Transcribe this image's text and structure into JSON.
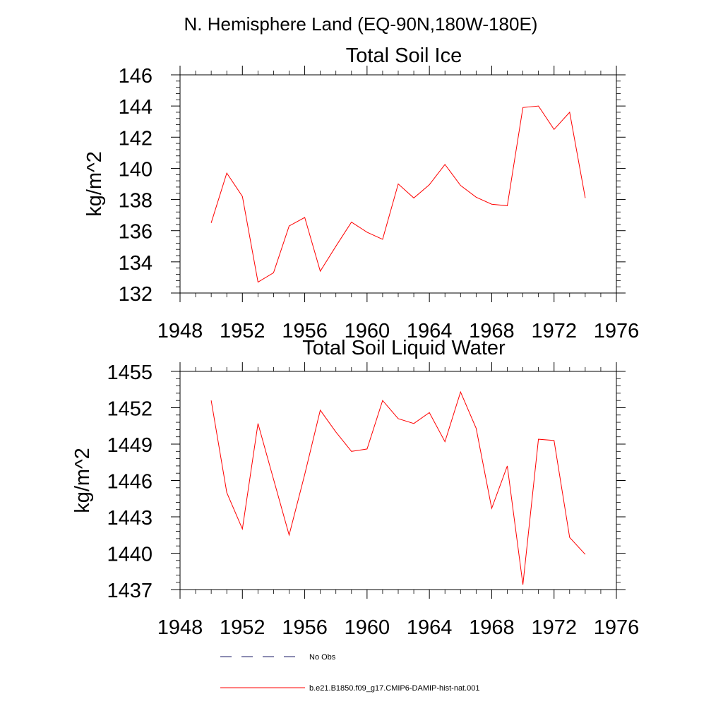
{
  "figure": {
    "suptitle": "N. Hemisphere Land (EQ-90N,180W-180E)"
  },
  "chart_data": [
    {
      "type": "line",
      "title": "Total Soil Ice",
      "xlabel": "",
      "ylabel": "kg/m^2",
      "xlim": [
        1948,
        1976
      ],
      "ylim": [
        132,
        146
      ],
      "xticks": [
        1948,
        1952,
        1956,
        1960,
        1964,
        1968,
        1972,
        1976
      ],
      "yticks": [
        132,
        134,
        136,
        138,
        140,
        142,
        144,
        146
      ],
      "x": [
        1950,
        1951,
        1952,
        1953,
        1954,
        1955,
        1956,
        1957,
        1958,
        1959,
        1960,
        1961,
        1962,
        1963,
        1964,
        1965,
        1966,
        1967,
        1968,
        1969,
        1970,
        1971,
        1972,
        1973,
        1974
      ],
      "series": [
        {
          "name": "b.e21.B1850.f09_g17.CMIP6-DAMIP-hist-nat.001",
          "color": "#ff0000",
          "values": [
            136.5,
            139.7,
            138.2,
            132.7,
            133.3,
            136.3,
            136.85,
            133.4,
            135.0,
            136.55,
            135.9,
            135.45,
            139.0,
            138.1,
            138.95,
            140.25,
            138.9,
            138.15,
            137.7,
            137.6,
            143.9,
            144.0,
            142.5,
            143.6,
            138.1
          ]
        }
      ]
    },
    {
      "type": "line",
      "title": "Total Soil Liquid Water",
      "xlabel": "",
      "ylabel": "kg/m^2",
      "xlim": [
        1948,
        1976
      ],
      "ylim": [
        1437,
        1455
      ],
      "xticks": [
        1948,
        1952,
        1956,
        1960,
        1964,
        1968,
        1972,
        1976
      ],
      "yticks": [
        1437,
        1440,
        1443,
        1446,
        1449,
        1452,
        1455
      ],
      "x": [
        1950,
        1951,
        1952,
        1953,
        1954,
        1955,
        1956,
        1957,
        1958,
        1959,
        1960,
        1961,
        1962,
        1963,
        1964,
        1965,
        1966,
        1967,
        1968,
        1969,
        1970,
        1971,
        1972,
        1973,
        1974
      ],
      "series": [
        {
          "name": "b.e21.B1850.f09_g17.CMIP6-DAMIP-hist-nat.001",
          "color": "#ff0000",
          "values": [
            1452.6,
            1445.0,
            1442.0,
            1450.7,
            1446.1,
            1441.5,
            1446.5,
            1451.8,
            1450.0,
            1448.4,
            1448.6,
            1452.6,
            1451.1,
            1450.7,
            1451.6,
            1449.2,
            1453.3,
            1450.3,
            1443.7,
            1447.2,
            1437.4,
            1449.4,
            1449.3,
            1441.3,
            1439.9
          ]
        }
      ]
    }
  ],
  "legend": {
    "placement": "bottom",
    "items": [
      {
        "label": "No Obs",
        "color": "#1a1a66",
        "style": "dashed"
      },
      {
        "label": "b.e21.B1850.f09_g17.CMIP6-DAMIP-hist-nat.001",
        "color": "#ff0000",
        "style": "solid"
      }
    ]
  }
}
